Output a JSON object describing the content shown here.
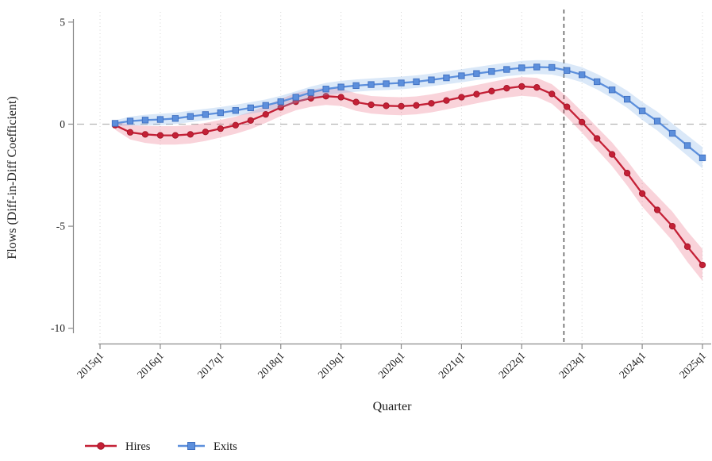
{
  "chart_data": {
    "type": "line",
    "title": "",
    "xlabel": "Quarter",
    "ylabel": "Flows (Diff-in-Diff Coefficient)",
    "x_quarters": [
      "2015q2",
      "2015q3",
      "2015q4",
      "2016q1",
      "2016q2",
      "2016q3",
      "2016q4",
      "2017q1",
      "2017q2",
      "2017q3",
      "2017q4",
      "2018q1",
      "2018q2",
      "2018q3",
      "2018q4",
      "2019q1",
      "2019q2",
      "2019q3",
      "2019q4",
      "2020q1",
      "2020q2",
      "2020q3",
      "2020q4",
      "2021q1",
      "2021q2",
      "2021q3",
      "2021q4",
      "2022q1",
      "2022q2",
      "2022q3",
      "2022q4",
      "2023q1",
      "2023q2",
      "2023q3",
      "2023q4",
      "2024q1",
      "2024q2",
      "2024q3",
      "2024q4",
      "2025q1"
    ],
    "series": [
      {
        "name": "Hires",
        "marker": "circle",
        "color": "#c42036",
        "marker_edge": "#a31628",
        "band_color": "#e8506a",
        "band_opacity": 0.25,
        "values": [
          -0.05,
          -0.4,
          -0.5,
          -0.55,
          -0.55,
          -0.5,
          -0.38,
          -0.22,
          -0.05,
          0.18,
          0.48,
          0.82,
          1.1,
          1.27,
          1.37,
          1.32,
          1.08,
          0.95,
          0.9,
          0.88,
          0.92,
          1.02,
          1.16,
          1.32,
          1.47,
          1.62,
          1.76,
          1.85,
          1.8,
          1.48,
          0.85,
          0.1,
          -0.7,
          -1.48,
          -2.4,
          -3.4,
          -4.2,
          -5.0,
          -6.0,
          -6.9
        ],
        "ci_half": [
          0.22,
          0.35,
          0.42,
          0.45,
          0.45,
          0.45,
          0.44,
          0.43,
          0.42,
          0.42,
          0.42,
          0.42,
          0.42,
          0.42,
          0.43,
          0.43,
          0.43,
          0.43,
          0.44,
          0.44,
          0.44,
          0.44,
          0.44,
          0.45,
          0.45,
          0.45,
          0.46,
          0.46,
          0.47,
          0.48,
          0.5,
          0.52,
          0.55,
          0.58,
          0.61,
          0.64,
          0.68,
          0.71,
          0.75,
          0.78
        ]
      },
      {
        "name": "Exits",
        "marker": "square",
        "color": "#5c8fdc",
        "marker_edge": "#3f6fc0",
        "band_color": "#85b4e8",
        "band_opacity": 0.3,
        "values": [
          0.04,
          0.15,
          0.2,
          0.23,
          0.28,
          0.38,
          0.47,
          0.56,
          0.67,
          0.8,
          0.92,
          1.1,
          1.32,
          1.55,
          1.72,
          1.82,
          1.89,
          1.94,
          1.98,
          2.02,
          2.08,
          2.17,
          2.27,
          2.37,
          2.48,
          2.58,
          2.68,
          2.76,
          2.8,
          2.78,
          2.63,
          2.42,
          2.08,
          1.68,
          1.22,
          0.65,
          0.15,
          -0.45,
          -1.05,
          -1.65
        ],
        "ci_half": [
          0.15,
          0.22,
          0.26,
          0.28,
          0.28,
          0.28,
          0.28,
          0.28,
          0.28,
          0.28,
          0.29,
          0.29,
          0.29,
          0.29,
          0.3,
          0.3,
          0.3,
          0.3,
          0.31,
          0.31,
          0.31,
          0.31,
          0.32,
          0.32,
          0.32,
          0.33,
          0.33,
          0.34,
          0.34,
          0.35,
          0.36,
          0.37,
          0.38,
          0.4,
          0.42,
          0.44,
          0.46,
          0.48,
          0.5,
          0.52
        ]
      }
    ],
    "x_ticks": [
      {
        "label": "2015q1",
        "qi": -1
      },
      {
        "label": "2016q1",
        "qi": 3
      },
      {
        "label": "2017q1",
        "qi": 7
      },
      {
        "label": "2018q1",
        "qi": 11
      },
      {
        "label": "2019q1",
        "qi": 15
      },
      {
        "label": "2020q1",
        "qi": 19
      },
      {
        "label": "2021q1",
        "qi": 23
      },
      {
        "label": "2022q1",
        "qi": 27
      },
      {
        "label": "2023q1",
        "qi": 31
      },
      {
        "label": "2024q1",
        "qi": 35
      },
      {
        "label": "2025q1",
        "qi": 39
      }
    ],
    "y_ticks": [
      5,
      0,
      -5,
      -10
    ],
    "ylim": [
      -10.75,
      5.5
    ],
    "zero_line": true,
    "vline_qi": 29.8,
    "grid": "vertical-dotted",
    "legend_position": "bottom-left",
    "colors": {
      "gridline": "#d4d4d4",
      "zero_line": "#b5b5b5",
      "vline": "#4f4f4f",
      "axis": "#8a8a8a",
      "text": "#1a1a1a"
    }
  }
}
